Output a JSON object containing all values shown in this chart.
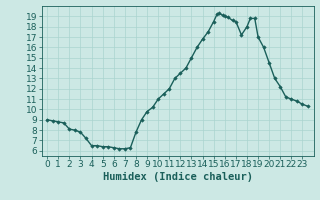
{
  "x": [
    0,
    0.5,
    1,
    1.5,
    2,
    2.5,
    3,
    3.5,
    4,
    4.5,
    5,
    5.5,
    6,
    6.5,
    7,
    7.5,
    8,
    8.5,
    9,
    9.5,
    10,
    10.5,
    11,
    11.5,
    12,
    12.5,
    13,
    13.5,
    14,
    14.5,
    15,
    15.3,
    15.5,
    15.8,
    16,
    16.3,
    16.7,
    17,
    17.5,
    18,
    18.3,
    18.7,
    19,
    19.5,
    20,
    20.5,
    21,
    21.5,
    22,
    22.5,
    23,
    23.5
  ],
  "y": [
    9.0,
    8.9,
    8.8,
    8.7,
    8.1,
    8.0,
    7.8,
    7.2,
    6.5,
    6.5,
    6.4,
    6.4,
    6.3,
    6.2,
    6.2,
    6.3,
    7.8,
    9.0,
    9.8,
    10.2,
    11.0,
    11.5,
    12.0,
    13.0,
    13.5,
    14.0,
    15.0,
    16.0,
    16.8,
    17.5,
    18.5,
    19.2,
    19.3,
    19.1,
    19.0,
    18.9,
    18.6,
    18.5,
    17.2,
    18.0,
    18.8,
    18.8,
    17.0,
    16.0,
    14.5,
    13.0,
    12.2,
    11.2,
    11.0,
    10.8,
    10.5,
    10.3
  ],
  "line_color": "#1a5f5a",
  "marker": "D",
  "marker_size": 1.8,
  "bg_color": "#cce8e4",
  "grid_color": "#aad4cf",
  "xlabel": "Humidex (Indice chaleur)",
  "xlim": [
    -0.5,
    24.0
  ],
  "ylim": [
    5.5,
    20.0
  ],
  "xticks": [
    0,
    1,
    2,
    3,
    4,
    5,
    6,
    7,
    8,
    9,
    10,
    11,
    12,
    13,
    14,
    15,
    16,
    17,
    18,
    19,
    20,
    21,
    22,
    23
  ],
  "yticks": [
    6,
    7,
    8,
    9,
    10,
    11,
    12,
    13,
    14,
    15,
    16,
    17,
    18,
    19
  ],
  "tick_fontsize": 6.5,
  "xlabel_fontsize": 7.5,
  "linewidth": 1.0
}
